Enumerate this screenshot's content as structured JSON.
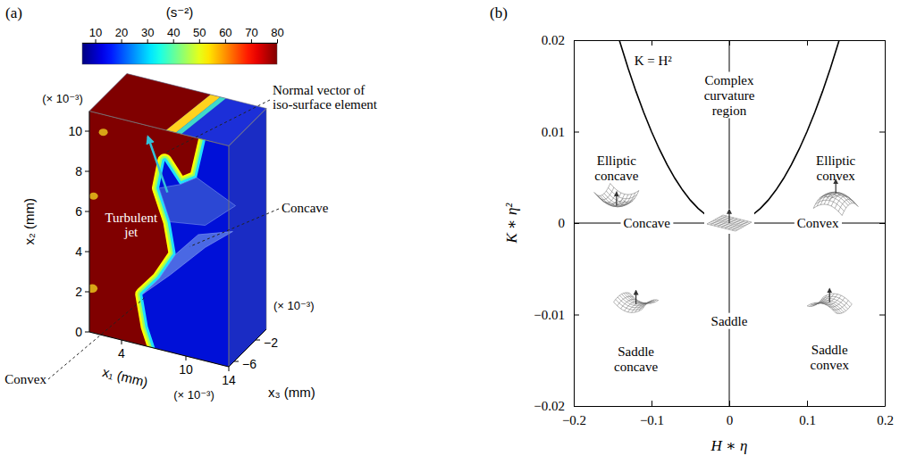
{
  "chart_data": [
    {
      "type": "surface3d",
      "panel_label": "(a)",
      "colorbar": {
        "label": "(s⁻²)",
        "range": [
          5,
          80
        ],
        "ticks": [
          10,
          20,
          30,
          40,
          50,
          60,
          70,
          80
        ]
      },
      "xlabel": "x₁ (mm)",
      "ylabel": "x₂ (mm)",
      "zlabel": "x₃ (mm)",
      "xlim": [
        1,
        14
      ],
      "xticks": [
        4,
        10,
        14
      ],
      "x_exponent_label": "(× 10⁻³)",
      "ylim": [
        0,
        11
      ],
      "yticks": [
        0,
        2,
        4,
        6,
        8,
        10
      ],
      "y_exponent_label": "(× 10⁻³)",
      "zlim": [
        -7,
        0
      ],
      "zticks": [
        {
          "value": -6,
          "label": "−6"
        },
        {
          "value": -2,
          "label": "−2"
        }
      ],
      "z_exponent_label": "(× 10⁻³)",
      "annotations": [
        {
          "text": [
            "Normal vector of",
            "iso-surface element"
          ]
        },
        {
          "text": [
            "Turbulent",
            "jet"
          ]
        },
        {
          "text": [
            "Concave"
          ]
        },
        {
          "text": [
            "Convex"
          ]
        }
      ]
    },
    {
      "type": "line",
      "panel_label": "(b)",
      "xlabel": "H ∗ η",
      "ylabel": "K ∗ η²",
      "xlim": [
        -0.2,
        0.2
      ],
      "xticks": [
        {
          "value": -0.2,
          "label": "−0.2"
        },
        {
          "value": -0.1,
          "label": "−0.1"
        },
        0,
        0.1,
        0.2
      ],
      "ylim": [
        -0.02,
        0.02
      ],
      "yticks": [
        {
          "value": -0.02,
          "label": "−0.02"
        },
        {
          "value": -0.01,
          "label": "−0.01"
        },
        0,
        0.01,
        0.02
      ],
      "series": [
        {
          "x": [
            -0.1414,
            -0.13,
            -0.12,
            -0.11,
            -0.1,
            -0.09,
            -0.08,
            -0.07,
            -0.06,
            -0.05,
            -0.04,
            -0.03,
            -0.02,
            -0.01,
            0,
            0.01,
            0.02,
            0.03,
            0.04,
            0.05,
            0.06,
            0.07,
            0.08,
            0.09,
            0.1,
            0.11,
            0.12,
            0.13,
            0.1414
          ],
          "values": [
            0.02,
            0.0169,
            0.0144,
            0.0121,
            0.01,
            0.0081,
            0.0064,
            0.0049,
            0.0036,
            0.0025,
            0.0016,
            0.0009,
            0.0004,
            0.0001,
            0,
            0.0001,
            0.0004,
            0.0009,
            0.0016,
            0.0025,
            0.0036,
            0.0049,
            0.0064,
            0.0081,
            0.01,
            0.0121,
            0.0144,
            0.0169,
            0.02
          ],
          "color": "#000000"
        },
        {
          "x": [
            -0.2,
            0.2
          ],
          "values": [
            0,
            0
          ],
          "color": "#000000"
        },
        {
          "x": [
            0,
            0
          ],
          "values": [
            -0.02,
            0.02
          ],
          "color": "#000000"
        }
      ],
      "annotations": [
        {
          "text": [
            "K = H²"
          ],
          "x": -0.098,
          "y": 0.0178
        },
        {
          "text": [
            "Elliptic",
            "concave"
          ],
          "x": -0.145,
          "y": 0.006
        },
        {
          "text": [
            "Complex",
            "curvature",
            "region"
          ],
          "x": 0,
          "y": 0.014
        },
        {
          "text": [
            "Elliptic",
            "convex"
          ],
          "x": 0.137,
          "y": 0.006
        },
        {
          "text": [
            "Concave"
          ],
          "x": -0.106,
          "y": 0
        },
        {
          "text": [
            "Convex"
          ],
          "x": 0.114,
          "y": 0
        },
        {
          "text": [
            "Saddle",
            "concave"
          ],
          "x": -0.12,
          "y": -0.0149
        },
        {
          "text": [
            "Saddle"
          ],
          "x": 0,
          "y": -0.0107
        },
        {
          "text": [
            "Saddle",
            "convex"
          ],
          "x": 0.129,
          "y": -0.0147
        }
      ]
    }
  ]
}
